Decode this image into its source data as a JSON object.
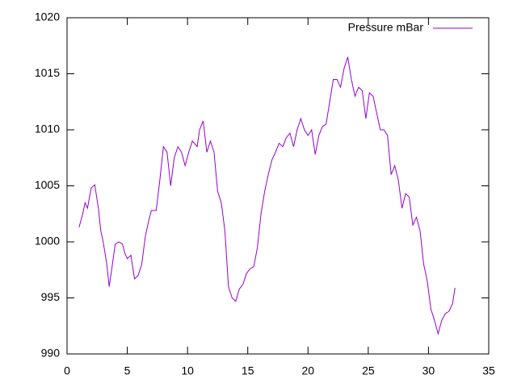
{
  "chart_data": {
    "type": "line",
    "x": [
      1.0,
      1.3,
      1.5,
      1.7,
      2.0,
      2.3,
      2.6,
      2.8,
      3.0,
      3.3,
      3.5,
      3.7,
      4.0,
      4.3,
      4.6,
      4.8,
      5.0,
      5.3,
      5.6,
      5.9,
      6.2,
      6.5,
      6.8,
      7.0,
      7.4,
      7.7,
      8.0,
      8.3,
      8.6,
      8.9,
      9.2,
      9.5,
      9.8,
      10.1,
      10.4,
      10.8,
      11.0,
      11.3,
      11.6,
      11.9,
      12.2,
      12.5,
      12.8,
      13.1,
      13.4,
      13.7,
      14.0,
      14.3,
      14.6,
      14.9,
      15.2,
      15.5,
      15.8,
      16.1,
      16.4,
      16.7,
      17.0,
      17.3,
      17.6,
      17.9,
      18.2,
      18.5,
      18.8,
      19.1,
      19.4,
      19.7,
      20.0,
      20.3,
      20.6,
      20.9,
      21.2,
      21.5,
      21.8,
      22.1,
      22.4,
      22.7,
      23.0,
      23.3,
      23.6,
      23.9,
      24.2,
      24.5,
      24.8,
      25.1,
      25.4,
      25.7,
      26.0,
      26.3,
      26.6,
      26.9,
      27.2,
      27.5,
      27.8,
      28.1,
      28.4,
      28.7,
      29.0,
      29.3,
      29.6,
      29.9,
      30.2,
      30.5,
      30.8,
      31.1,
      31.4,
      31.7,
      32.0,
      32.2
    ],
    "series": [
      {
        "name": "Pressure mBar",
        "color": "#9400d3",
        "values": [
          1001.3,
          1002.5,
          1003.5,
          1003.0,
          1004.8,
          1005.1,
          1003.0,
          1001.0,
          1000.0,
          998.0,
          996.0,
          997.5,
          999.8,
          1000.0,
          999.8,
          999.0,
          998.5,
          998.8,
          996.7,
          997.0,
          998.0,
          1000.5,
          1002.0,
          1002.8,
          1002.8,
          1005.5,
          1008.5,
          1008.0,
          1005.0,
          1007.5,
          1008.5,
          1008.0,
          1006.8,
          1008.0,
          1009.0,
          1008.5,
          1010.0,
          1010.8,
          1008.0,
          1009.0,
          1008.0,
          1004.5,
          1003.5,
          1001.0,
          996.0,
          995.0,
          994.7,
          995.8,
          996.2,
          997.2,
          997.6,
          997.8,
          999.5,
          1002.5,
          1004.5,
          1006.0,
          1007.3,
          1008.0,
          1008.8,
          1008.5,
          1009.3,
          1009.7,
          1008.5,
          1010.0,
          1011.0,
          1010.0,
          1009.5,
          1010.0,
          1007.8,
          1009.5,
          1010.3,
          1010.5,
          1012.5,
          1014.5,
          1014.5,
          1013.8,
          1015.5,
          1016.5,
          1014.5,
          1013.0,
          1013.8,
          1013.5,
          1011.0,
          1013.3,
          1013.0,
          1011.5,
          1010.0,
          1010.0,
          1009.5,
          1006.0,
          1006.8,
          1005.5,
          1003.0,
          1004.3,
          1004.0,
          1001.5,
          1002.2,
          1001.0,
          998.0,
          996.5,
          994.0,
          993.0,
          991.8,
          993.0,
          993.6,
          993.8,
          994.5,
          995.9
        ]
      }
    ],
    "xlim": [
      0,
      35
    ],
    "xticks": [
      0,
      5,
      10,
      15,
      20,
      25,
      30,
      35
    ],
    "ylim": [
      990,
      1020
    ],
    "yticks": [
      990,
      995,
      1000,
      1005,
      1010,
      1015,
      1020
    ],
    "legend": "top-right"
  }
}
